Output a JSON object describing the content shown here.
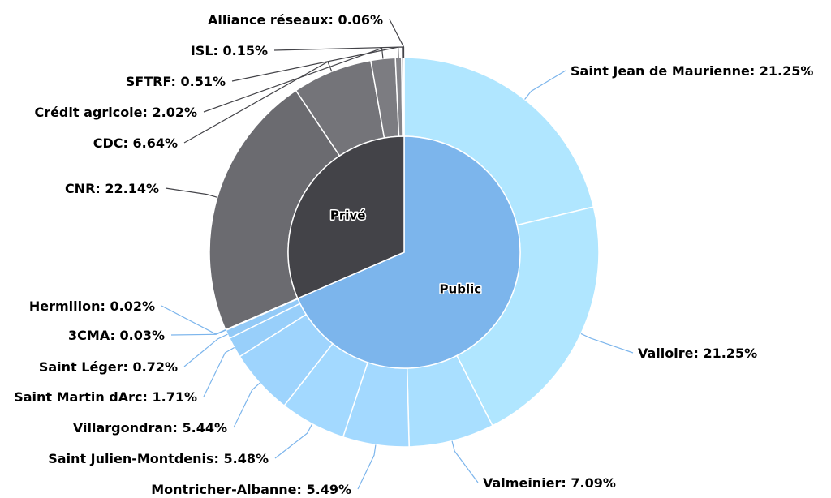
{
  "chart_data": {
    "type": "pie",
    "variant": "donut",
    "title": "",
    "inner": [
      {
        "name": "Public",
        "value": 68.48,
        "color": "#7cb5ec"
      },
      {
        "name": "Privé",
        "value": 31.52,
        "color": "#434348"
      }
    ],
    "outer": [
      {
        "name": "Saint Jean de Maurienne",
        "value": 21.25,
        "label": "Saint Jean de Maurienne: 21.25%",
        "group": "Public",
        "color": "#b0e6ff"
      },
      {
        "name": "Valloire",
        "value": 21.25,
        "label": "Valloire: 21.25%",
        "group": "Public",
        "color": "#b0e6ff"
      },
      {
        "name": "Valmeinier",
        "value": 7.09,
        "label": "Valmeinier: 7.09%",
        "group": "Public",
        "color": "#a9dfff"
      },
      {
        "name": "Montricher-Albanne",
        "value": 5.49,
        "label": "Montricher-Albanne: 5.49%",
        "group": "Public",
        "color": "#a3d9ff"
      },
      {
        "name": "Saint Julien-Montdenis",
        "value": 5.48,
        "label": "Saint Julien-Montdenis: 5.48%",
        "group": "Public",
        "color": "#a3d9ff"
      },
      {
        "name": "Villargondran",
        "value": 5.44,
        "label": "Villargondran: 5.44%",
        "group": "Public",
        "color": "#9ed4fd"
      },
      {
        "name": "Saint Martin dArc",
        "value": 1.71,
        "label": "Saint Martin dArc: 1.71%",
        "group": "Public",
        "color": "#98cffa"
      },
      {
        "name": "Saint Léger",
        "value": 0.72,
        "label": "Saint Léger: 0.72%",
        "group": "Public",
        "color": "#93caf7"
      },
      {
        "name": "3CMA",
        "value": 0.03,
        "label": "3CMA: 0.03%",
        "group": "Public",
        "color": "#8ec5f4"
      },
      {
        "name": "Hermillon",
        "value": 0.02,
        "label": "Hermillon: 0.02%",
        "group": "Public",
        "color": "#8ac1f1"
      },
      {
        "name": "CNR",
        "value": 22.14,
        "label": "CNR: 22.14%",
        "group": "Privé",
        "color": "#6b6b70"
      },
      {
        "name": "CDC",
        "value": 6.64,
        "label": "CDC: 6.64%",
        "group": "Privé",
        "color": "#747479"
      },
      {
        "name": "Crédit agricole",
        "value": 2.02,
        "label": "Crédit agricole: 2.02%",
        "group": "Privé",
        "color": "#7c7c81"
      },
      {
        "name": "SFTRF",
        "value": 0.51,
        "label": "SFTRF: 0.51%",
        "group": "Privé",
        "color": "#85858a"
      },
      {
        "name": "ISL",
        "value": 0.15,
        "label": "ISL: 0.15%",
        "group": "Privé",
        "color": "#8d8d92"
      },
      {
        "name": "Alliance réseaux",
        "value": 0.06,
        "label": "Alliance réseaux: 0.06%",
        "group": "Privé",
        "color": "#96969b"
      }
    ],
    "connector_colors": {
      "Public": "#7cb5ec",
      "Privé": "#434348"
    }
  }
}
